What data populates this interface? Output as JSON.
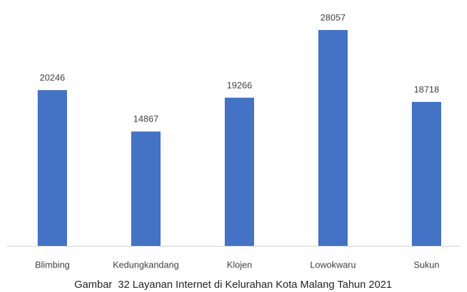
{
  "chart_data": {
    "type": "bar",
    "title": "Gambar  32 Layanan Internet di Kelurahan Kota Malang Tahun 2021",
    "categories": [
      "Blimbing",
      "Kedungkandang",
      "Klojen",
      "Lowokwaru",
      "Sukun"
    ],
    "values": [
      20246,
      14867,
      19266,
      28057,
      18718
    ],
    "color": "#4472c4",
    "grid": false
  }
}
